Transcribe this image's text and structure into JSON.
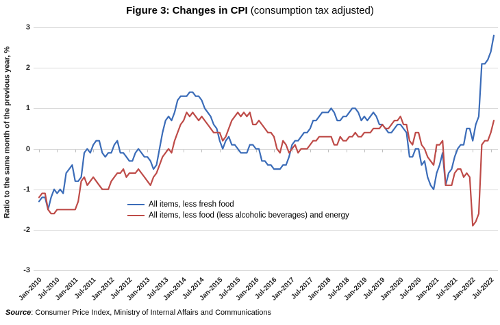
{
  "header": {
    "title_bold": "Figure 3: Changes in CPI",
    "title_normal": " (consumption tax adjusted)"
  },
  "source": {
    "prefix": "Source",
    "text": ": Consumer Price Index, Ministry of Internal Affairs and Communications"
  },
  "colors": {
    "grid": "#D9D9D9",
    "tick": "#BFBFBF",
    "series_blue": "#3B6CB8",
    "series_red": "#BE4B48"
  },
  "chart_data": {
    "type": "line",
    "title": "Figure 3: Changes in CPI (consumption tax adjusted)",
    "xlabel": "",
    "ylabel": "Ratio to the same month of the previous year, %",
    "ylim": [
      -3,
      3
    ],
    "y_ticks": [
      3,
      2,
      1,
      0,
      -1,
      -2,
      -3
    ],
    "grid": "horizontal",
    "legend_position": "inside-bottom-left",
    "x_start": "Jan-2010",
    "x_end": "Aug-2022",
    "x_frequency": "monthly",
    "x_tick_labels": [
      "Jan-2010",
      "Jul-2010",
      "Jan-2011",
      "Jul-2011",
      "Jan-2012",
      "Jul-2012",
      "Jan-2013",
      "Jul-2013",
      "Jan-2014",
      "Jul-2014",
      "Jan-2015",
      "Jul-2015",
      "Jan-2016",
      "Jul-2016",
      "Jan-2017",
      "Jul-2017",
      "Jan-2018",
      "Jul-2018",
      "Jan-2019",
      "Jul-2019",
      "Jan-2020",
      "Jul-2020",
      "Jan-2021",
      "Jul-2021",
      "Jan-2022",
      "Jul-2022"
    ],
    "x_tick_interval_months": 6,
    "series": [
      {
        "name": "All items, less fresh food",
        "color": "#3B6CB8",
        "values": [
          -1.3,
          -1.2,
          -1.2,
          -1.5,
          -1.2,
          -1.0,
          -1.1,
          -1.0,
          -1.1,
          -0.6,
          -0.5,
          -0.4,
          -0.8,
          -0.8,
          -0.7,
          -0.1,
          0.0,
          -0.1,
          0.1,
          0.2,
          0.2,
          -0.1,
          -0.2,
          -0.1,
          -0.1,
          0.1,
          0.2,
          -0.1,
          -0.1,
          -0.2,
          -0.3,
          -0.3,
          -0.1,
          0.0,
          -0.1,
          -0.2,
          -0.2,
          -0.3,
          -0.5,
          -0.4,
          0.0,
          0.4,
          0.7,
          0.8,
          0.7,
          0.9,
          1.2,
          1.3,
          1.3,
          1.3,
          1.4,
          1.4,
          1.3,
          1.3,
          1.2,
          1.0,
          0.9,
          0.8,
          0.6,
          0.5,
          0.2,
          0.0,
          0.2,
          0.3,
          0.1,
          0.1,
          0.0,
          -0.1,
          -0.1,
          -0.1,
          0.1,
          0.1,
          0.0,
          0.0,
          -0.3,
          -0.3,
          -0.4,
          -0.4,
          -0.5,
          -0.5,
          -0.5,
          -0.4,
          -0.4,
          -0.2,
          0.1,
          0.2,
          0.2,
          0.3,
          0.4,
          0.4,
          0.5,
          0.7,
          0.7,
          0.8,
          0.9,
          0.9,
          0.9,
          1.0,
          0.9,
          0.7,
          0.7,
          0.8,
          0.8,
          0.9,
          1.0,
          1.0,
          0.9,
          0.7,
          0.8,
          0.7,
          0.8,
          0.9,
          0.8,
          0.6,
          0.6,
          0.5,
          0.4,
          0.4,
          0.5,
          0.6,
          0.6,
          0.5,
          0.4,
          -0.2,
          -0.2,
          0.0,
          0.0,
          -0.4,
          -0.3,
          -0.7,
          -0.9,
          -1.0,
          -0.6,
          -0.4,
          -0.1,
          -0.9,
          -0.6,
          -0.5,
          -0.2,
          0.0,
          0.1,
          0.1,
          0.5,
          0.5,
          0.2,
          0.6,
          0.8,
          2.1,
          2.1,
          2.2,
          2.4,
          2.8
        ]
      },
      {
        "name": "All items, less food (less alcoholic beverages) and energy",
        "color": "#BE4B48",
        "values": [
          -1.2,
          -1.1,
          -1.1,
          -1.5,
          -1.6,
          -1.6,
          -1.5,
          -1.5,
          -1.5,
          -1.5,
          -1.5,
          -1.5,
          -1.5,
          -1.3,
          -0.8,
          -0.7,
          -0.9,
          -0.8,
          -0.7,
          -0.8,
          -0.9,
          -1.0,
          -1.0,
          -1.0,
          -0.8,
          -0.7,
          -0.6,
          -0.6,
          -0.5,
          -0.7,
          -0.6,
          -0.6,
          -0.6,
          -0.5,
          -0.6,
          -0.7,
          -0.8,
          -0.9,
          -0.7,
          -0.6,
          -0.4,
          -0.2,
          -0.1,
          0.0,
          -0.1,
          0.2,
          0.4,
          0.6,
          0.7,
          0.9,
          0.8,
          0.9,
          0.8,
          0.7,
          0.8,
          0.7,
          0.6,
          0.5,
          0.4,
          0.4,
          0.4,
          0.2,
          0.3,
          0.5,
          0.7,
          0.8,
          0.9,
          0.8,
          0.9,
          0.8,
          0.9,
          0.6,
          0.6,
          0.7,
          0.6,
          0.5,
          0.4,
          0.4,
          0.3,
          0.0,
          -0.1,
          0.2,
          0.1,
          -0.1,
          0.0,
          0.1,
          -0.1,
          0.0,
          0.0,
          0.0,
          0.1,
          0.2,
          0.2,
          0.3,
          0.3,
          0.3,
          0.3,
          0.3,
          0.1,
          0.1,
          0.3,
          0.2,
          0.2,
          0.3,
          0.3,
          0.4,
          0.3,
          0.3,
          0.4,
          0.4,
          0.4,
          0.5,
          0.5,
          0.5,
          0.6,
          0.5,
          0.5,
          0.6,
          0.7,
          0.7,
          0.8,
          0.6,
          0.6,
          0.2,
          0.1,
          0.4,
          0.4,
          0.1,
          0.0,
          -0.2,
          -0.3,
          -0.4,
          0.1,
          0.1,
          0.2,
          -0.9,
          -0.9,
          -0.9,
          -0.6,
          -0.5,
          -0.5,
          -0.7,
          -0.6,
          -0.7,
          -1.9,
          -1.8,
          -1.6,
          0.1,
          0.2,
          0.2,
          0.4,
          0.7
        ]
      }
    ]
  }
}
